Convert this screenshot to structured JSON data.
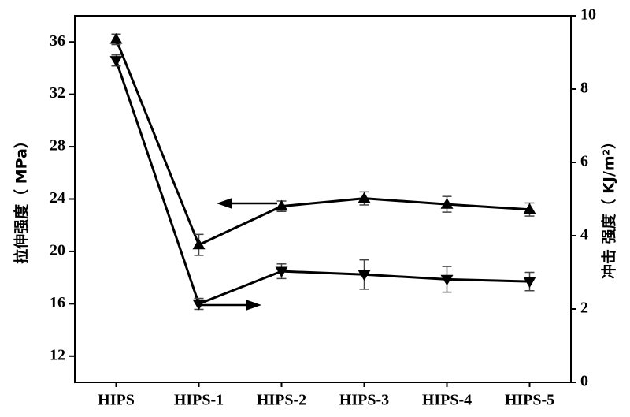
{
  "chart_data": {
    "type": "line",
    "y_label": "拉伸强度（ MPa）",
    "y2_label": "冲击 强度（ KJ/m²）",
    "categories": [
      "HIPS",
      "HIPS-1",
      "HIPS-2",
      "HIPS-3",
      "HIPS-4",
      "HIPS-5"
    ],
    "series": [
      {
        "color": "#000000",
        "marker": "triangle-up",
        "values": [
          36.2,
          20.5,
          23.45,
          24.05,
          23.6,
          23.2
        ],
        "errors": [
          0.4,
          0.8,
          0.4,
          0.5,
          0.6,
          0.5
        ]
      },
      {
        "color": "#000000",
        "marker": "triangle-down",
        "axis": "y2",
        "values": [
          8.78,
          2.14,
          3.03,
          2.94,
          2.81,
          2.75
        ],
        "errors": [
          0.15,
          0.15,
          0.2,
          0.4,
          0.35,
          0.25
        ]
      }
    ],
    "ylim": [
      10,
      38
    ],
    "yticks": [
      12,
      16,
      20,
      24,
      28,
      32,
      36
    ],
    "y2lim": [
      0,
      10
    ],
    "y2ticks": [
      0,
      2,
      4,
      6,
      8,
      10
    ],
    "grid": false
  }
}
